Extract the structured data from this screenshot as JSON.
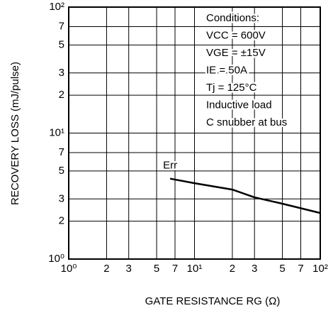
{
  "chart_data": {
    "type": "line",
    "log_x": true,
    "log_y": true,
    "grid": true,
    "x_label": "GATE RESISTANCE  RG (Ω)",
    "y_label": "RECOVERY LOSS (mJ/pulse)",
    "xlim": [
      1,
      100
    ],
    "ylim": [
      1,
      100
    ],
    "xticks": [
      {
        "value": 1,
        "label": "10⁰"
      },
      2,
      3,
      5,
      7,
      {
        "value": 10,
        "label": "10¹"
      },
      {
        "value": 20,
        "label": "2"
      },
      {
        "value": 30,
        "label": "3"
      },
      {
        "value": 50,
        "label": "5"
      },
      {
        "value": 70,
        "label": "7"
      },
      {
        "value": 100,
        "label": "10²"
      }
    ],
    "yticks": [
      {
        "value": 1,
        "label": "10⁰"
      },
      2,
      3,
      5,
      7,
      {
        "value": 10,
        "label": "10¹"
      },
      {
        "value": 20,
        "label": "2"
      },
      {
        "value": 30,
        "label": "3"
      },
      {
        "value": 50,
        "label": "5"
      },
      {
        "value": 70,
        "label": "7"
      },
      {
        "value": 100,
        "label": "10²"
      }
    ],
    "series": [
      {
        "name": "Err",
        "color": "#000000",
        "x": [
          6.4,
          10,
          20,
          30,
          50,
          100
        ],
        "values": [
          4.35,
          4.0,
          3.56,
          3.09,
          2.75,
          2.32
        ]
      }
    ],
    "conditions": [
      "Conditions:",
      "VCC = 600V",
      "VGE = ±15V",
      "IE = 50A",
      "Tj = 125°C",
      "Inductive load",
      "C snubber at bus"
    ]
  }
}
